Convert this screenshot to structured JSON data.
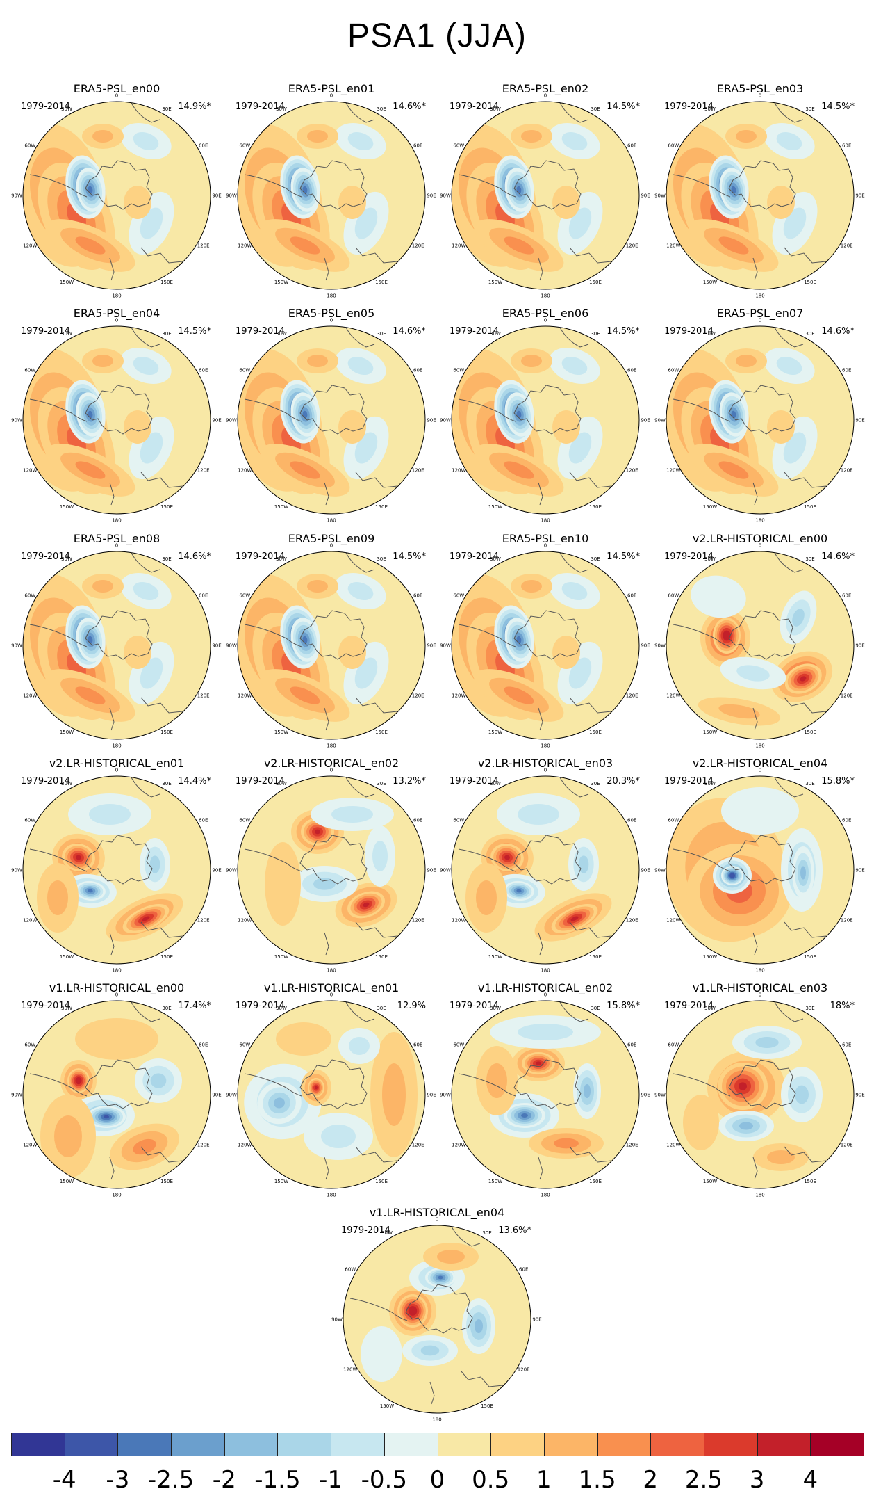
{
  "title": "PSA1 (JJA)",
  "period": "1979-2014",
  "longitude_labels": [
    "0",
    "30E",
    "60E",
    "90E",
    "120E",
    "150E",
    "180",
    "150W",
    "120W",
    "90W",
    "60W",
    "30W"
  ],
  "panels": [
    {
      "name": "ERA5-PSL_en00",
      "variance": "14.9%*",
      "pattern": "era5"
    },
    {
      "name": "ERA5-PSL_en01",
      "variance": "14.6%*",
      "pattern": "era5"
    },
    {
      "name": "ERA5-PSL_en02",
      "variance": "14.5%*",
      "pattern": "era5"
    },
    {
      "name": "ERA5-PSL_en03",
      "variance": "14.5%*",
      "pattern": "era5"
    },
    {
      "name": "ERA5-PSL_en04",
      "variance": "14.5%*",
      "pattern": "era5"
    },
    {
      "name": "ERA5-PSL_en05",
      "variance": "14.6%*",
      "pattern": "era5"
    },
    {
      "name": "ERA5-PSL_en06",
      "variance": "14.5%*",
      "pattern": "era5"
    },
    {
      "name": "ERA5-PSL_en07",
      "variance": "14.6%*",
      "pattern": "era5"
    },
    {
      "name": "ERA5-PSL_en08",
      "variance": "14.6%*",
      "pattern": "era5"
    },
    {
      "name": "ERA5-PSL_en09",
      "variance": "14.5%*",
      "pattern": "era5"
    },
    {
      "name": "ERA5-PSL_en10",
      "variance": "14.5%*",
      "pattern": "era5"
    },
    {
      "name": "v2.LR-HISTORICAL_en00",
      "variance": "14.6%*",
      "pattern": "v2a"
    },
    {
      "name": "v2.LR-HISTORICAL_en01",
      "variance": "14.4%*",
      "pattern": "v2b"
    },
    {
      "name": "v2.LR-HISTORICAL_en02",
      "variance": "13.2%*",
      "pattern": "v2c"
    },
    {
      "name": "v2.LR-HISTORICAL_en03",
      "variance": "20.3%*",
      "pattern": "v2b"
    },
    {
      "name": "v2.LR-HISTORICAL_en04",
      "variance": "15.8%*",
      "pattern": "v2d"
    },
    {
      "name": "v1.LR-HISTORICAL_en00",
      "variance": "17.4%*",
      "pattern": "v1a"
    },
    {
      "name": "v1.LR-HISTORICAL_en01",
      "variance": "12.9%",
      "pattern": "v1b"
    },
    {
      "name": "v1.LR-HISTORICAL_en02",
      "variance": "15.8%*",
      "pattern": "v1c"
    },
    {
      "name": "v1.LR-HISTORICAL_en03",
      "variance": "18%*",
      "pattern": "v1d"
    },
    {
      "name": "v1.LR-HISTORICAL_en04",
      "variance": "13.6%*",
      "pattern": "v1e"
    }
  ],
  "colorbar": {
    "labels": [
      "-4",
      "-3",
      "-2.5",
      "-2",
      "-1.5",
      "-1",
      "-0.5",
      "0",
      "0.5",
      "1",
      "1.5",
      "2",
      "2.5",
      "3",
      "4"
    ],
    "colors": [
      "#313695",
      "#3d56a8",
      "#4a78b8",
      "#6b9fcd",
      "#8dbfde",
      "#aad6e8",
      "#c7e7f0",
      "#e4f3f2",
      "#f8e8a6",
      "#fdd283",
      "#fcb567",
      "#f9904f",
      "#ee6340",
      "#db3a2c",
      "#c3202a",
      "#a50026"
    ],
    "levels": [
      -4,
      -3,
      -2.5,
      -2,
      -1.5,
      -1,
      -0.5,
      0,
      0.5,
      1,
      1.5,
      2,
      2.5,
      3,
      4
    ]
  }
}
